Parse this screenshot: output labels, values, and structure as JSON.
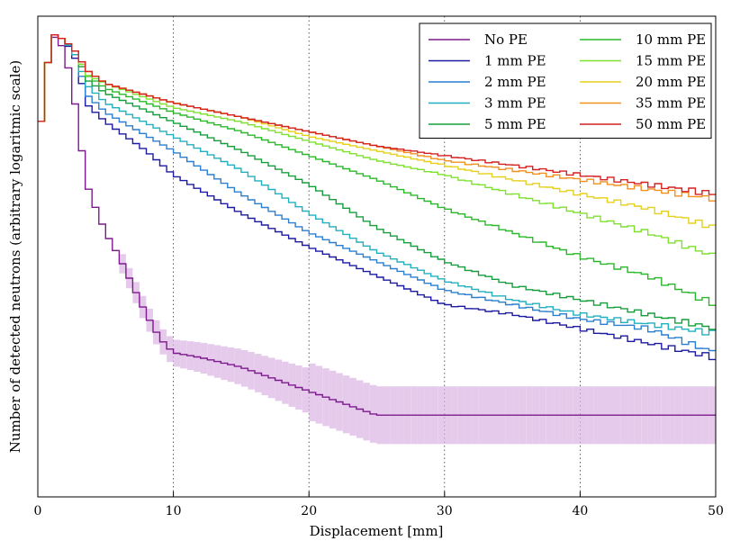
{
  "chart_data": {
    "type": "line",
    "step": true,
    "xlabel": "Displacement [mm]",
    "ylabel": "Number of detected neutrons (arbitrary logaritmic scale)",
    "xlim": [
      0,
      50
    ],
    "ylim": [
      0,
      1
    ],
    "x_ticks": [
      0,
      10,
      20,
      30,
      40,
      50
    ],
    "y_scale": "log (arbitrary, unlabeled)",
    "grid": "vertical dotted",
    "legend": {
      "placement": "top-right",
      "columns": 2
    },
    "colors": {
      "No PE": "#7d1a8c",
      "1 mm PE": "#1c1aa0",
      "2 mm PE": "#2a7fd0",
      "3 mm PE": "#22b0c0",
      "5 mm PE": "#169e3c",
      "10 mm PE": "#2ab82a",
      "15 mm PE": "#7fe030",
      "20 mm PE": "#e6d01a",
      "35 mm PE": "#f0901e",
      "50 mm PE": "#d42020",
      "no_pe_band": "#dcb8e6"
    },
    "series": [
      {
        "name": "No PE",
        "points": [
          [
            0,
            0.72
          ],
          [
            1,
            0.965
          ],
          [
            2,
            0.93
          ],
          [
            3,
            0.78
          ],
          [
            3.5,
            0.66
          ],
          [
            4,
            0.62
          ],
          [
            5,
            0.55
          ],
          [
            6,
            0.5
          ],
          [
            7,
            0.44
          ],
          [
            8,
            0.38
          ],
          [
            9,
            0.33
          ],
          [
            10,
            0.3
          ],
          [
            12,
            0.29
          ],
          [
            15,
            0.27
          ],
          [
            18,
            0.24
          ],
          [
            20,
            0.22
          ],
          [
            25,
            0.17
          ],
          [
            30,
            0.17
          ],
          [
            35,
            0.17
          ],
          [
            40,
            0.17
          ],
          [
            50,
            0.17
          ]
        ]
      },
      {
        "name": "1 mm PE",
        "points": [
          [
            0,
            0.72
          ],
          [
            1,
            0.965
          ],
          [
            2,
            0.95
          ],
          [
            3,
            0.9
          ],
          [
            3.5,
            0.82
          ],
          [
            5,
            0.78
          ],
          [
            8,
            0.72
          ],
          [
            10,
            0.67
          ],
          [
            15,
            0.59
          ],
          [
            20,
            0.52
          ],
          [
            25,
            0.46
          ],
          [
            30,
            0.4
          ],
          [
            35,
            0.38
          ],
          [
            40,
            0.35
          ],
          [
            45,
            0.32
          ],
          [
            50,
            0.29
          ]
        ]
      },
      {
        "name": "2 mm PE",
        "points": [
          [
            0,
            0.72
          ],
          [
            1,
            0.965
          ],
          [
            2,
            0.95
          ],
          [
            3,
            0.91
          ],
          [
            3.5,
            0.84
          ],
          [
            5,
            0.8
          ],
          [
            10,
            0.72
          ],
          [
            15,
            0.63
          ],
          [
            20,
            0.55
          ],
          [
            25,
            0.49
          ],
          [
            30,
            0.43
          ],
          [
            35,
            0.4
          ],
          [
            40,
            0.37
          ],
          [
            45,
            0.35
          ],
          [
            50,
            0.3
          ]
        ]
      },
      {
        "name": "3 mm PE",
        "points": [
          [
            0,
            0.72
          ],
          [
            1,
            0.965
          ],
          [
            2,
            0.95
          ],
          [
            3,
            0.91
          ],
          [
            3.5,
            0.86
          ],
          [
            5,
            0.82
          ],
          [
            10,
            0.75
          ],
          [
            15,
            0.68
          ],
          [
            20,
            0.59
          ],
          [
            25,
            0.51
          ],
          [
            30,
            0.45
          ],
          [
            35,
            0.41
          ],
          [
            40,
            0.38
          ],
          [
            45,
            0.36
          ],
          [
            50,
            0.34
          ]
        ]
      },
      {
        "name": "5 mm PE",
        "points": [
          [
            0,
            0.72
          ],
          [
            1,
            0.965
          ],
          [
            2,
            0.95
          ],
          [
            3,
            0.92
          ],
          [
            3.5,
            0.87
          ],
          [
            5,
            0.84
          ],
          [
            10,
            0.78
          ],
          [
            15,
            0.72
          ],
          [
            20,
            0.65
          ],
          [
            25,
            0.56
          ],
          [
            30,
            0.49
          ],
          [
            35,
            0.44
          ],
          [
            40,
            0.41
          ],
          [
            45,
            0.38
          ],
          [
            50,
            0.35
          ]
        ]
      },
      {
        "name": "10 mm PE",
        "points": [
          [
            0,
            0.72
          ],
          [
            1,
            0.965
          ],
          [
            2,
            0.95
          ],
          [
            3,
            0.92
          ],
          [
            3.5,
            0.88
          ],
          [
            5,
            0.85
          ],
          [
            10,
            0.8
          ],
          [
            15,
            0.76
          ],
          [
            20,
            0.71
          ],
          [
            25,
            0.66
          ],
          [
            30,
            0.6
          ],
          [
            35,
            0.55
          ],
          [
            40,
            0.5
          ],
          [
            45,
            0.46
          ],
          [
            50,
            0.4
          ]
        ]
      },
      {
        "name": "15 mm PE",
        "points": [
          [
            0,
            0.72
          ],
          [
            1,
            0.965
          ],
          [
            2,
            0.95
          ],
          [
            3,
            0.92
          ],
          [
            3.5,
            0.88
          ],
          [
            5,
            0.86
          ],
          [
            10,
            0.81
          ],
          [
            15,
            0.78
          ],
          [
            20,
            0.74
          ],
          [
            25,
            0.7
          ],
          [
            30,
            0.67
          ],
          [
            35,
            0.63
          ],
          [
            40,
            0.59
          ],
          [
            45,
            0.55
          ],
          [
            50,
            0.5
          ]
        ]
      },
      {
        "name": "20 mm PE",
        "points": [
          [
            0,
            0.72
          ],
          [
            1,
            0.965
          ],
          [
            2,
            0.95
          ],
          [
            3,
            0.92
          ],
          [
            3.5,
            0.89
          ],
          [
            5,
            0.86
          ],
          [
            10,
            0.82
          ],
          [
            15,
            0.79
          ],
          [
            20,
            0.75
          ],
          [
            25,
            0.72
          ],
          [
            30,
            0.69
          ],
          [
            35,
            0.66
          ],
          [
            40,
            0.63
          ],
          [
            45,
            0.6
          ],
          [
            50,
            0.56
          ]
        ]
      },
      {
        "name": "35 mm PE",
        "points": [
          [
            0,
            0.72
          ],
          [
            1,
            0.965
          ],
          [
            2,
            0.95
          ],
          [
            3,
            0.92
          ],
          [
            3.5,
            0.89
          ],
          [
            5,
            0.86
          ],
          [
            10,
            0.82
          ],
          [
            15,
            0.79
          ],
          [
            20,
            0.76
          ],
          [
            25,
            0.73
          ],
          [
            30,
            0.7
          ],
          [
            35,
            0.68
          ],
          [
            40,
            0.66
          ],
          [
            45,
            0.64
          ],
          [
            50,
            0.62
          ]
        ]
      },
      {
        "name": "50 mm PE",
        "points": [
          [
            0,
            0.72
          ],
          [
            1,
            0.965
          ],
          [
            2,
            0.95
          ],
          [
            3,
            0.92
          ],
          [
            3.5,
            0.89
          ],
          [
            5,
            0.86
          ],
          [
            10,
            0.82
          ],
          [
            15,
            0.79
          ],
          [
            20,
            0.76
          ],
          [
            25,
            0.73
          ],
          [
            30,
            0.71
          ],
          [
            35,
            0.69
          ],
          [
            40,
            0.67
          ],
          [
            45,
            0.65
          ],
          [
            50,
            0.63
          ]
        ]
      }
    ]
  }
}
